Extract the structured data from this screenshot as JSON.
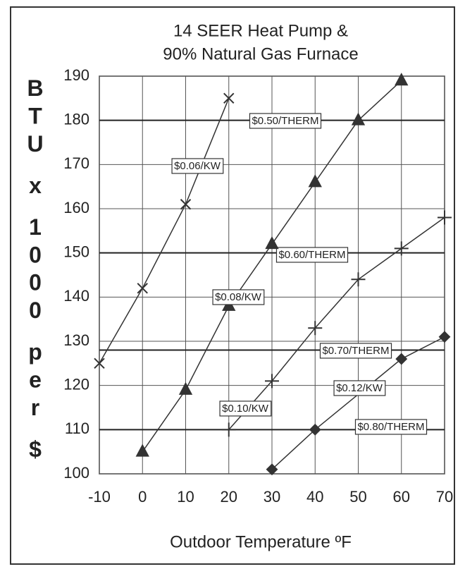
{
  "chart_data": {
    "type": "line",
    "title": [
      "14 SEER Heat Pump &",
      "90% Natural Gas Furnace"
    ],
    "x_label": "Outdoor Temperature ºF",
    "y_label": "BTU x 1000 per $",
    "xlim": [
      -10,
      70
    ],
    "ylim": [
      100,
      190
    ],
    "xticks": [
      -10,
      0,
      10,
      20,
      30,
      40,
      50,
      60,
      70
    ],
    "yticks": [
      100,
      110,
      120,
      130,
      140,
      150,
      160,
      170,
      180,
      190
    ],
    "grid": true,
    "series": [
      {
        "name": "$0.06/KW",
        "marker": "x",
        "color": "#333333",
        "x": [
          -10,
          0,
          10,
          20
        ],
        "values": [
          125,
          142,
          161,
          185
        ]
      },
      {
        "name": "$0.08/KW",
        "marker": "triangle",
        "color": "#333333",
        "x": [
          0,
          10,
          20,
          30,
          40,
          50,
          60
        ],
        "values": [
          105,
          119,
          138,
          152,
          166,
          180,
          189
        ]
      },
      {
        "name": "$0.10/KW",
        "marker": "plus",
        "color": "#333333",
        "x": [
          20,
          30,
          40,
          50,
          60,
          70
        ],
        "values": [
          110,
          121,
          133,
          144,
          151,
          158
        ]
      },
      {
        "name": "$0.12/KW",
        "marker": "diamond",
        "color": "#333333",
        "x": [
          30,
          40,
          60,
          70
        ],
        "values": [
          101,
          110,
          126,
          131
        ]
      }
    ],
    "reference_lines": [
      {
        "name": "$0.50/THERM",
        "value": 180
      },
      {
        "name": "$0.60/THERM",
        "value": 150
      },
      {
        "name": "$0.70/THERM",
        "value": 128
      },
      {
        "name": "$0.80/THERM",
        "value": 110
      }
    ]
  }
}
